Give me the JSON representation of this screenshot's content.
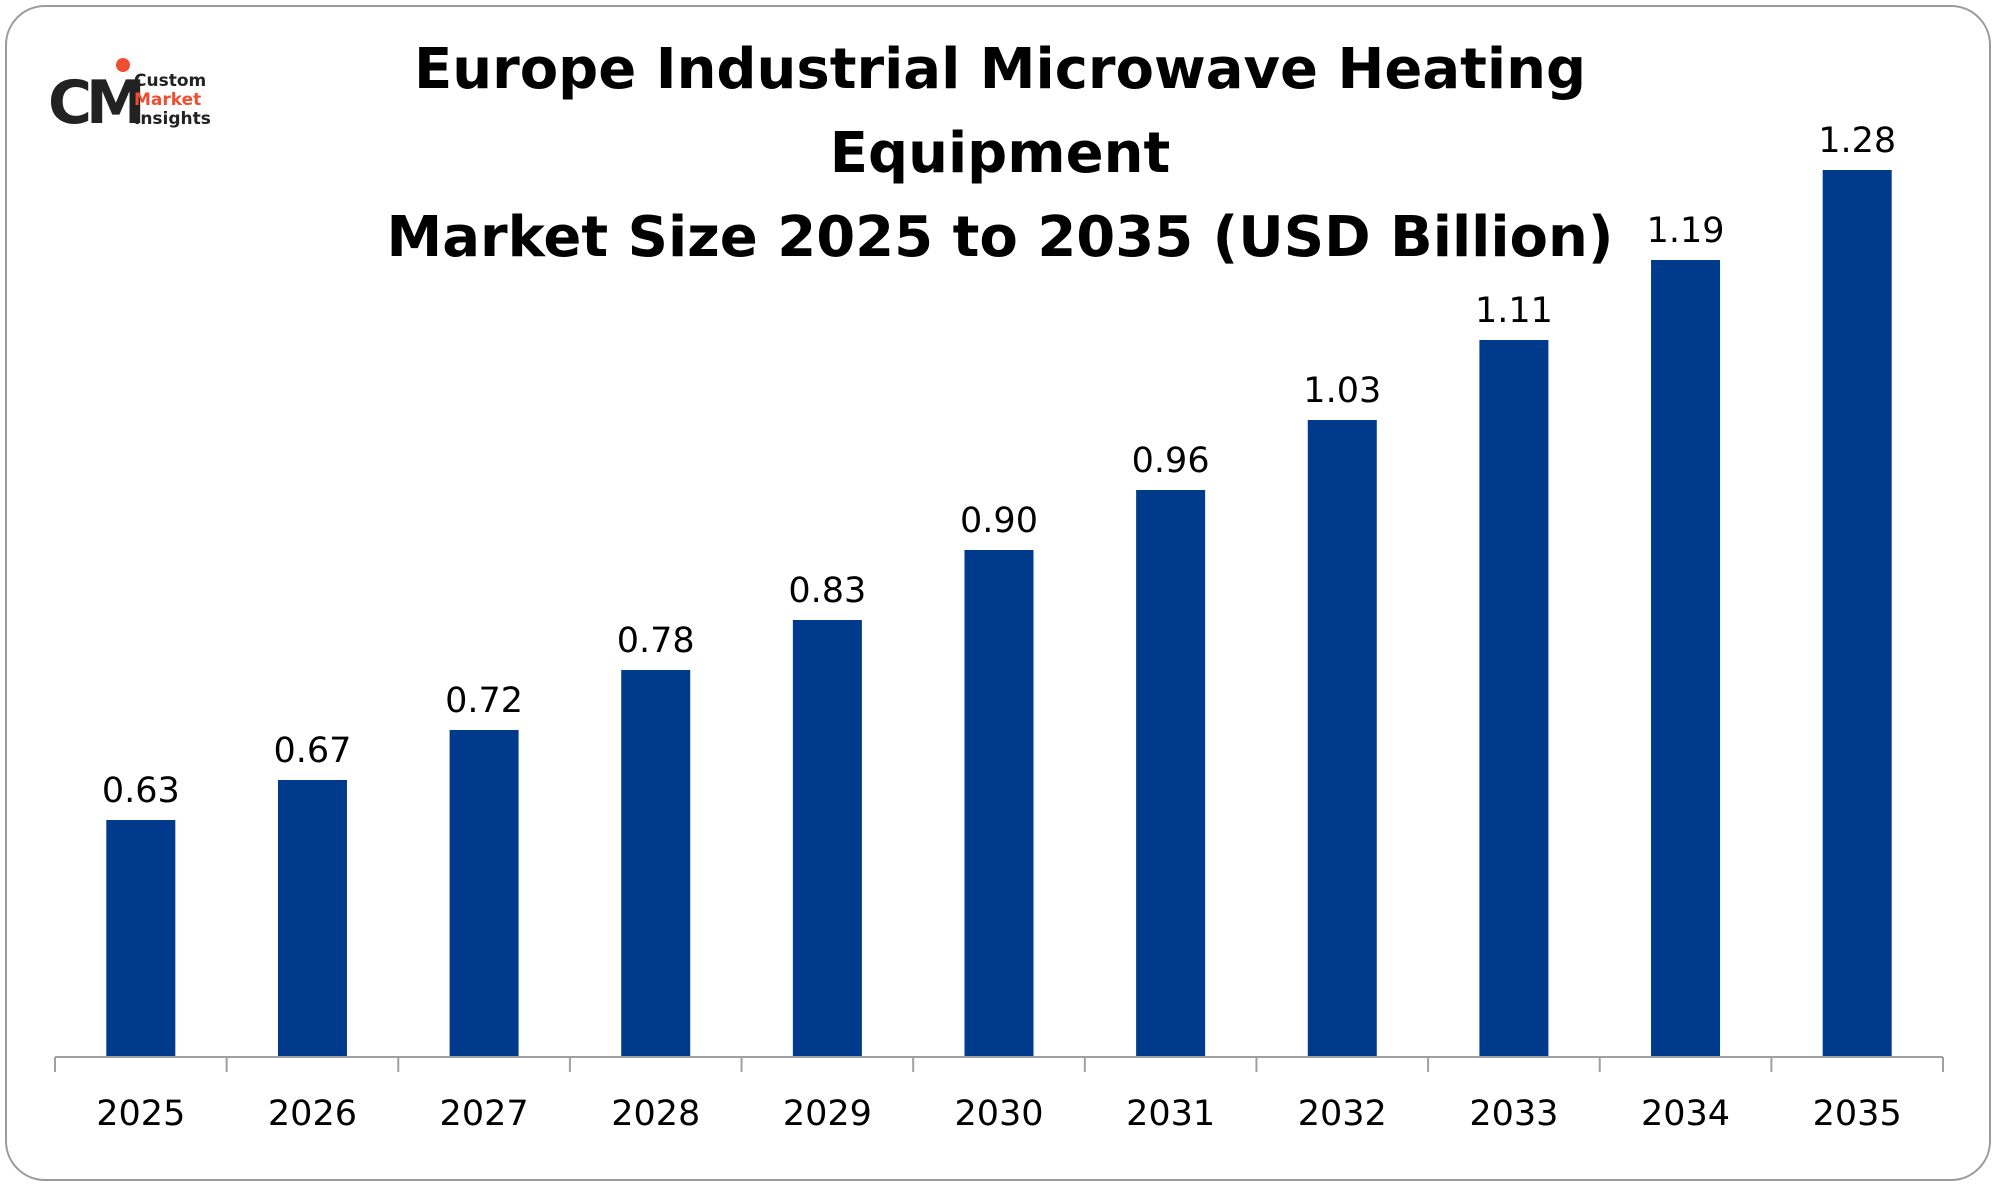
{
  "logo": {
    "mark": "CM",
    "line1": "Custom",
    "line2": "Market",
    "line3": "Insights"
  },
  "chart_data": {
    "type": "bar",
    "title": "Europe Industrial Microwave Heating Equipment Market Size 2025 to 2035 (USD Billion)",
    "title_lines": [
      "Europe Industrial Microwave Heating Equipment",
      "Market Size 2025 to 2035 (USD Billion)"
    ],
    "categories": [
      "2025",
      "2026",
      "2027",
      "2028",
      "2029",
      "2030",
      "2031",
      "2032",
      "2033",
      "2034",
      "2035"
    ],
    "values": [
      0.63,
      0.67,
      0.72,
      0.78,
      0.83,
      0.9,
      0.96,
      1.03,
      1.11,
      1.19,
      1.28
    ],
    "value_labels": [
      "0.63",
      "0.67",
      "0.72",
      "0.78",
      "0.83",
      "0.90",
      "0.96",
      "1.03",
      "1.11",
      "1.19",
      "1.28"
    ],
    "xlabel": "",
    "ylabel": "",
    "grid": false,
    "legend": "none",
    "bar_color": "#003a8c"
  }
}
